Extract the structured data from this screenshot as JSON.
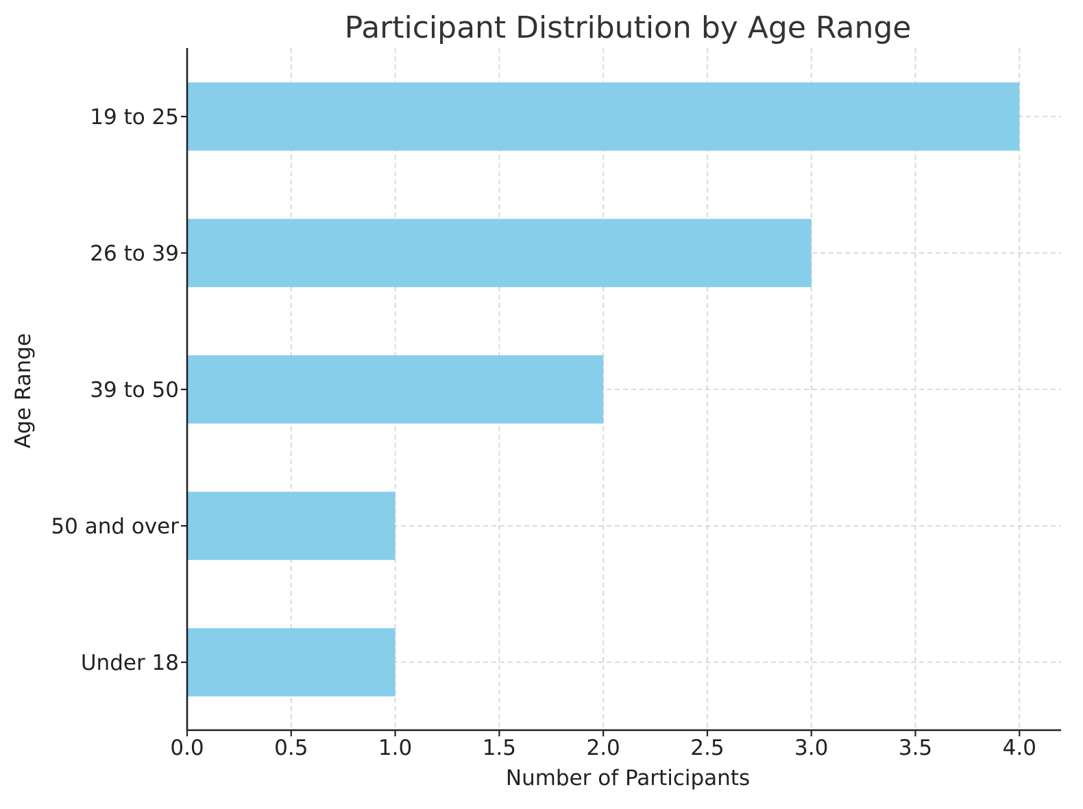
{
  "chart_data": {
    "type": "bar",
    "orientation": "horizontal",
    "title": "Participant Distribution by Age Range",
    "xlabel": "Number of Participants",
    "ylabel": "Age Range",
    "categories": [
      "19 to 25",
      "26 to 39",
      "39 to 50",
      "50 and over",
      "Under 18"
    ],
    "values": [
      4,
      3,
      2,
      1,
      1
    ],
    "xlim": [
      0,
      4.2
    ],
    "xticks": [
      "0.0",
      "0.5",
      "1.0",
      "1.5",
      "2.0",
      "2.5",
      "3.0",
      "3.5",
      "4.0"
    ],
    "bar_color": "#87CEEB",
    "grid": true,
    "legend": false
  }
}
